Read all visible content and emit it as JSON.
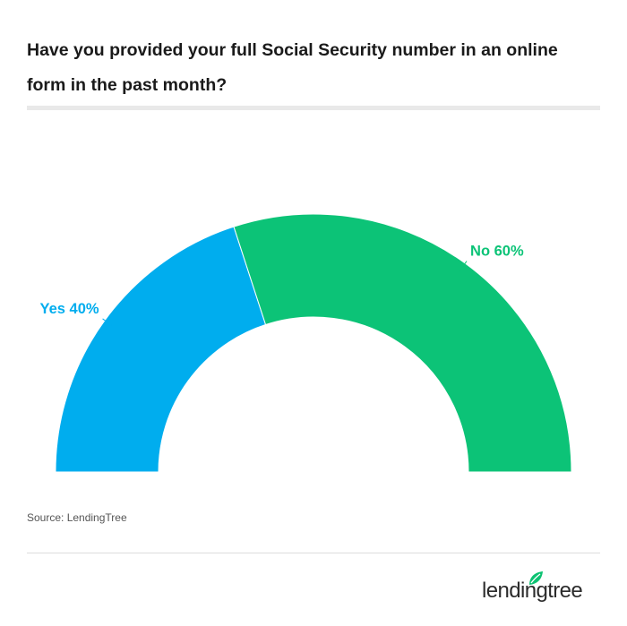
{
  "title": "Have you provided your full Social Security number in an online form in the past month?",
  "source": "Source: LendingTree",
  "brand": {
    "name": "lendingtree",
    "leaf_color": "#0CC272"
  },
  "chart_data": {
    "type": "pie",
    "variant": "semi-donut",
    "slices": [
      {
        "label": "Yes",
        "value": 40,
        "display": "Yes 40%",
        "color": "#00ADEE"
      },
      {
        "label": "No",
        "value": 60,
        "display": "No 60%",
        "color": "#0CC377"
      }
    ],
    "legend": "none"
  }
}
